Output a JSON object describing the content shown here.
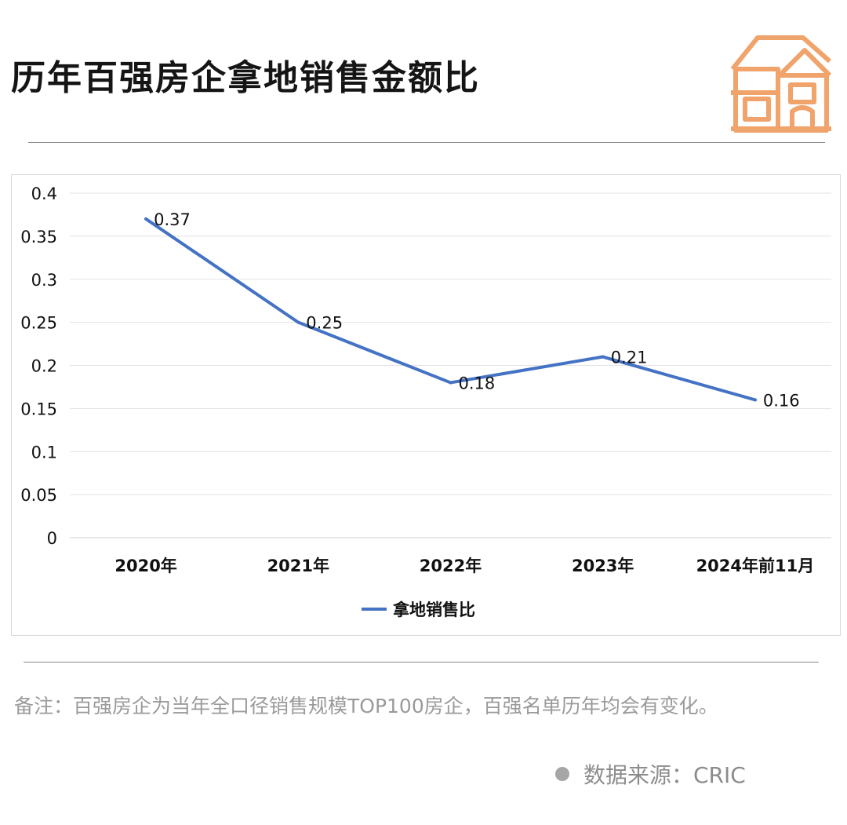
{
  "header": {
    "title": "历年百强房企拿地销售金额比"
  },
  "logo": {
    "icon": "house-icon",
    "color": "#f0a36b"
  },
  "chart_data": {
    "type": "line",
    "categories": [
      "2020年",
      "2021年",
      "2022年",
      "2023年",
      "2024年前11月"
    ],
    "series": [
      {
        "name": "拿地销售比",
        "values": [
          0.37,
          0.25,
          0.18,
          0.21,
          0.16
        ],
        "color": "#4472c4"
      }
    ],
    "data_labels": [
      "0.37",
      "0.25",
      "0.18",
      "0.21",
      "0.16"
    ],
    "yticks": [
      "0",
      "0.05",
      "0.1",
      "0.15",
      "0.2",
      "0.25",
      "0.3",
      "0.35",
      "0.4"
    ],
    "ylim": [
      0,
      0.4
    ],
    "grid": true,
    "legend": "bottom",
    "title": "",
    "xlabel": "",
    "ylabel": ""
  },
  "footer": {
    "note": "备注：百强房企为当年全口径销售规模TOP100房企，百强名单历年均会有变化。",
    "source": "数据来源：CRIC"
  }
}
